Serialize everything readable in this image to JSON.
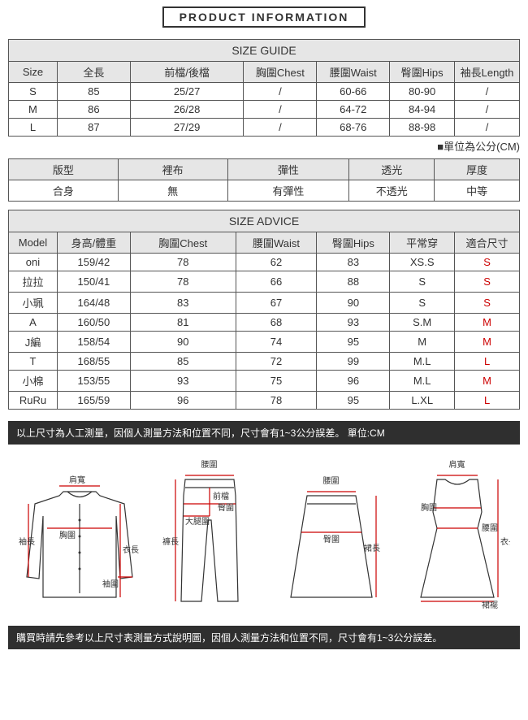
{
  "banner": {
    "title": "PRODUCT INFORMATION"
  },
  "sizeGuide": {
    "heading": "SIZE GUIDE",
    "headers": [
      "Size",
      "全長",
      "前檔/後檔",
      "胸圍Chest",
      "腰圍Waist",
      "臀圍Hips",
      "袖長Length"
    ],
    "rows": [
      [
        "S",
        "85",
        "25/27",
        "/",
        "60-66",
        "80-90",
        "/"
      ],
      [
        "M",
        "86",
        "26/28",
        "/",
        "64-72",
        "84-94",
        "/"
      ],
      [
        "L",
        "87",
        "27/29",
        "/",
        "68-76",
        "88-98",
        "/"
      ]
    ],
    "unitNote": "■單位為公分(CM)"
  },
  "attributes": {
    "headers": [
      "版型",
      "裡布",
      "彈性",
      "透光",
      "厚度"
    ],
    "values": [
      "合身",
      "無",
      "有彈性",
      "不透光",
      "中等"
    ]
  },
  "sizeAdvice": {
    "heading": "SIZE ADVICE",
    "headers": [
      "Model",
      "身高/體重",
      "胸圍Chest",
      "腰圍Waist",
      "臀圍Hips",
      "平常穿",
      "適合尺寸"
    ],
    "rows": [
      {
        "cells": [
          "oni",
          "159/42",
          "78",
          "62",
          "83",
          "XS.S"
        ],
        "fit": "S"
      },
      {
        "cells": [
          "拉拉",
          "150/41",
          "78",
          "66",
          "88",
          "S"
        ],
        "fit": "S"
      },
      {
        "cells": [
          "小珮",
          "164/48",
          "83",
          "67",
          "90",
          "S"
        ],
        "fit": "S"
      },
      {
        "cells": [
          "A",
          "160/50",
          "81",
          "68",
          "93",
          "S.M"
        ],
        "fit": "M"
      },
      {
        "cells": [
          "J編",
          "158/54",
          "90",
          "74",
          "95",
          "M"
        ],
        "fit": "M"
      },
      {
        "cells": [
          "T",
          "168/55",
          "85",
          "72",
          "99",
          "M.L"
        ],
        "fit": "L"
      },
      {
        "cells": [
          "小棉",
          "153/55",
          "93",
          "75",
          "96",
          "M.L"
        ],
        "fit": "M"
      },
      {
        "cells": [
          "RuRu",
          "165/59",
          "96",
          "78",
          "95",
          "L.XL"
        ],
        "fit": "L"
      }
    ]
  },
  "notes": {
    "top": "以上尺寸為人工測量，因個人測量方法和位置不同，尺寸會有1~3公分誤差。 單位:CM",
    "bottom": "購買時請先參考以上尺寸表測量方式說明圖，因個人測量方法和位置不同，尺寸會有1~3公分誤差。"
  },
  "diagramLabels": {
    "shirt": {
      "shoulder": "肩寬",
      "sleeve": "袖長",
      "chest": "胸圍",
      "cuff": "袖圍",
      "length": "衣長"
    },
    "pants": {
      "waist": "腰圍",
      "front": "前檔",
      "hip": "臀圍",
      "thigh": "大腿圍",
      "length": "褲長"
    },
    "skirt": {
      "waist": "腰圍",
      "hip": "臀圍",
      "length": "裙長"
    },
    "dress": {
      "shoulder": "肩寬",
      "chest": "胸圍",
      "waist": "腰圍",
      "length": "衣長",
      "hem": "裙襬"
    }
  },
  "layout": {
    "pageWidth": 650,
    "tableWidth": 630,
    "colors": {
      "border": "#555555",
      "headerBg": "#e6e6e6",
      "darkBar": "#2f2f2f",
      "measureLine": "#cc0000",
      "text": "#333333"
    },
    "sizeGuideColWidths": [
      60,
      90,
      140,
      90,
      90,
      80,
      80
    ],
    "attributesColWidths": [
      135,
      135,
      150,
      105,
      105
    ],
    "sizeAdviceColWidths": [
      60,
      90,
      130,
      100,
      90,
      80,
      80
    ]
  }
}
